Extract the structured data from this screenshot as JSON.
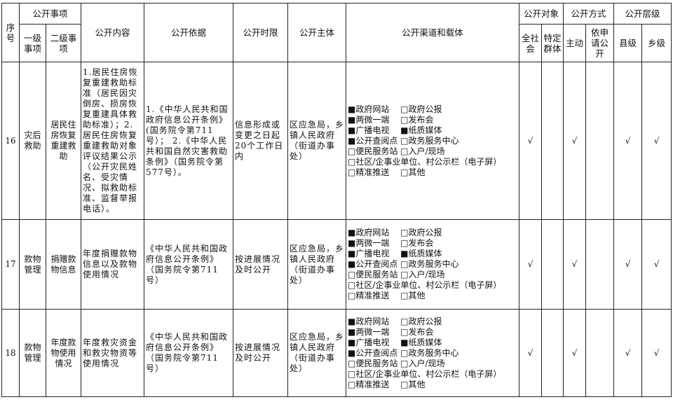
{
  "header": {
    "seq": "序号",
    "item": "公开事项",
    "level1": "一级事项",
    "level2": "二级事项",
    "content": "公开内容",
    "basis": "公开依据",
    "time": "公开时限",
    "subject": "公开主体",
    "channel": "公开渠道和载体",
    "target": "公开对象",
    "target_all": "全社会",
    "target_specific": "特定群体",
    "method": "公开方式",
    "method_active": "主动",
    "method_apply": "依申请公开",
    "level": "公开层级",
    "level_county": "县级",
    "level_town": "乡级"
  },
  "channels": [
    "■政府网站　 □政府公报",
    "■两微一端　 □发布会",
    "■广播电视　 ■纸质媒体",
    "■公开查阅点 □政务服务中心",
    "□便民服务站 □入户/现场",
    "□社区/企事业单位、村公示栏（电子屏）",
    "□精准推送　 □其他"
  ],
  "rows": [
    {
      "seq": "16",
      "level1": "灾后救助",
      "level2": "居民住房恢复重建救助",
      "content": "1.居民住房恢复重建救助标准（居民因灾倒房、损房恢复重建具体救助标准）；2.居民住房恢复重建救助对象评议结果公示（公开灾民姓名、受灾情况、拟救助标准、监督举报电话）。",
      "basis": "1.《中华人民共和国政府信息公开条例》(国务院令第711号）； 2.《中华人民共和国自然灾害救助条例》（国务院令第577号）。",
      "time": "信息形成或变更之日起20个工作日内",
      "subject": "区应急局，乡镇人民政府（街道办事处）",
      "all": "√",
      "specific": "",
      "active": "√",
      "apply": "",
      "county": "√",
      "town": "√"
    },
    {
      "seq": "17",
      "level1": "款物管理",
      "level2": "捐赠款物信息",
      "content": "年度捐赠款物信息以及款物使用情况",
      "basis": "《中华人民共和国政府信息公开条例》（国务院令第711号）",
      "time": "按进展情况及时公开",
      "subject": "区应急局，乡镇人民政府（街道办事处）",
      "all": "√",
      "specific": "",
      "active": "√",
      "apply": "",
      "county": "√",
      "town": "√"
    },
    {
      "seq": "18",
      "level1": "款物管理",
      "level2": "年度款物使用情况",
      "content": "年度救灾资金和救灾物资等使用情况",
      "basis": "《中华人民共和国政府信息公开条例》（国务院令第711号）",
      "time": "按进展情况及时公开",
      "subject": "区应急局，乡镇人民政府（街道办事处）",
      "all": "√",
      "specific": "",
      "active": "√",
      "apply": "",
      "county": "√",
      "town": "√"
    }
  ]
}
